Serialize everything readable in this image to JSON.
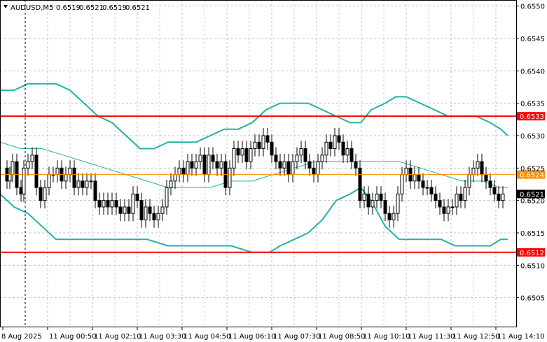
{
  "header": {
    "symbol": "AUDUSD,M5",
    "open": "0.6519",
    "high": "0.6521",
    "low": "0.6519",
    "close": "0.6521"
  },
  "colors": {
    "background": "#ffffff",
    "grid": "#c0c0c0",
    "candles": "#000000",
    "bands": "#20b2aa",
    "level_lines": "#ff0000",
    "mid_line": "#ff8c00",
    "current_price_box": "#000000",
    "level_label_box": "#ff0000"
  },
  "chart_data": {
    "type": "candlestick",
    "symbol": "AUDUSD",
    "timeframe": "M5",
    "ylim": [
      0.65,
      0.65505
    ],
    "yticks": [
      "0.6550",
      "0.6545",
      "0.6540",
      "0.6535",
      "0.6530",
      "0.6525",
      "0.6520",
      "0.6515",
      "0.6510",
      "0.6505"
    ],
    "xticks": [
      "8 Aug 2025",
      "11 Aug 00:50",
      "11 Aug 02:10",
      "11 Aug 03:30",
      "11 Aug 04:50",
      "11 Aug 06:10",
      "11 Aug 07:30",
      "11 Aug 08:50",
      "11 Aug 10:10",
      "11 Aug 11:30",
      "11 Aug 12:50",
      "11 Aug 14:10"
    ],
    "grid": true,
    "horizontal_levels": [
      {
        "label": "0.6533",
        "value": 0.6533,
        "color": "#ff0000"
      },
      {
        "label": "0.6524",
        "value": 0.6524,
        "color": "#ff8c00"
      },
      {
        "label": "0.6512",
        "value": 0.6512,
        "color": "#ff0000"
      }
    ],
    "current_price": {
      "label": "0.6521",
      "value": 0.6521
    },
    "close_path": [
      [
        0,
        0.6525
      ],
      [
        6,
        0.6523
      ],
      [
        10,
        0.6524
      ],
      [
        14,
        0.6526
      ],
      [
        20,
        0.6522
      ],
      [
        26,
        0.6521
      ],
      [
        30,
        0.6525
      ],
      [
        36,
        0.6526
      ],
      [
        42,
        0.6527
      ],
      [
        48,
        0.6522
      ],
      [
        54,
        0.652
      ],
      [
        60,
        0.6522
      ],
      [
        66,
        0.6524
      ],
      [
        72,
        0.6524
      ],
      [
        78,
        0.6525
      ],
      [
        84,
        0.6523
      ],
      [
        90,
        0.6524
      ],
      [
        96,
        0.6525
      ],
      [
        102,
        0.6522
      ],
      [
        108,
        0.6523
      ],
      [
        114,
        0.6522
      ],
      [
        120,
        0.6523
      ],
      [
        126,
        0.6523
      ],
      [
        132,
        0.652
      ],
      [
        138,
        0.6519
      ],
      [
        144,
        0.652
      ],
      [
        150,
        0.6519
      ],
      [
        156,
        0.652
      ],
      [
        162,
        0.6519
      ],
      [
        168,
        0.6518
      ],
      [
        174,
        0.6519
      ],
      [
        180,
        0.6518
      ],
      [
        186,
        0.6521
      ],
      [
        192,
        0.652
      ],
      [
        198,
        0.6517
      ],
      [
        204,
        0.6519
      ],
      [
        210,
        0.6518
      ],
      [
        216,
        0.6517
      ],
      [
        222,
        0.6518
      ],
      [
        228,
        0.6519
      ],
      [
        234,
        0.6522
      ],
      [
        240,
        0.6523
      ],
      [
        246,
        0.6524
      ],
      [
        252,
        0.6525
      ],
      [
        258,
        0.6524
      ],
      [
        264,
        0.6526
      ],
      [
        270,
        0.6525
      ],
      [
        276,
        0.6526
      ],
      [
        282,
        0.6527
      ],
      [
        288,
        0.6524
      ],
      [
        294,
        0.6527
      ],
      [
        300,
        0.6526
      ],
      [
        306,
        0.6525
      ],
      [
        312,
        0.6526
      ],
      [
        318,
        0.6522
      ],
      [
        324,
        0.6525
      ],
      [
        330,
        0.6528
      ],
      [
        336,
        0.6527
      ],
      [
        342,
        0.6528
      ],
      [
        348,
        0.6526
      ],
      [
        354,
        0.6528
      ],
      [
        360,
        0.6529
      ],
      [
        366,
        0.6528
      ],
      [
        372,
        0.653
      ],
      [
        378,
        0.6529
      ],
      [
        384,
        0.6527
      ],
      [
        390,
        0.6526
      ],
      [
        396,
        0.6525
      ],
      [
        402,
        0.6526
      ],
      [
        408,
        0.6524
      ],
      [
        414,
        0.6526
      ],
      [
        420,
        0.6527
      ],
      [
        426,
        0.6528
      ],
      [
        432,
        0.6526
      ],
      [
        438,
        0.6525
      ],
      [
        444,
        0.6524
      ],
      [
        450,
        0.6526
      ],
      [
        456,
        0.6527
      ],
      [
        462,
        0.6529
      ],
      [
        468,
        0.6528
      ],
      [
        474,
        0.653
      ],
      [
        480,
        0.6529
      ],
      [
        486,
        0.6527
      ],
      [
        492,
        0.6528
      ],
      [
        498,
        0.6526
      ],
      [
        504,
        0.6525
      ],
      [
        510,
        0.652
      ],
      [
        516,
        0.6521
      ],
      [
        522,
        0.6519
      ],
      [
        528,
        0.652
      ],
      [
        534,
        0.6521
      ],
      [
        540,
        0.652
      ],
      [
        546,
        0.6518
      ],
      [
        552,
        0.6517
      ],
      [
        558,
        0.6518
      ],
      [
        564,
        0.6521
      ],
      [
        570,
        0.6524
      ],
      [
        576,
        0.6525
      ],
      [
        582,
        0.6523
      ],
      [
        588,
        0.6524
      ],
      [
        594,
        0.6523
      ],
      [
        600,
        0.6522
      ],
      [
        606,
        0.6522
      ],
      [
        612,
        0.6521
      ],
      [
        618,
        0.652
      ],
      [
        624,
        0.6519
      ],
      [
        630,
        0.6518
      ],
      [
        636,
        0.6519
      ],
      [
        642,
        0.6519
      ],
      [
        648,
        0.6521
      ],
      [
        654,
        0.652
      ],
      [
        660,
        0.6522
      ],
      [
        666,
        0.6524
      ],
      [
        672,
        0.6525
      ],
      [
        678,
        0.6526
      ],
      [
        684,
        0.6524
      ],
      [
        690,
        0.6523
      ],
      [
        696,
        0.6522
      ],
      [
        702,
        0.6521
      ],
      [
        708,
        0.652
      ],
      [
        714,
        0.6521
      ]
    ],
    "upper_band": [
      [
        0,
        0.6537
      ],
      [
        20,
        0.6537
      ],
      [
        40,
        0.6538
      ],
      [
        60,
        0.6538
      ],
      [
        80,
        0.6538
      ],
      [
        100,
        0.6537
      ],
      [
        120,
        0.6535
      ],
      [
        140,
        0.6533
      ],
      [
        160,
        0.6532
      ],
      [
        180,
        0.653
      ],
      [
        200,
        0.6528
      ],
      [
        220,
        0.6528
      ],
      [
        240,
        0.6529
      ],
      [
        260,
        0.6529
      ],
      [
        280,
        0.6529
      ],
      [
        300,
        0.653
      ],
      [
        320,
        0.6531
      ],
      [
        340,
        0.6531
      ],
      [
        360,
        0.6532
      ],
      [
        380,
        0.6534
      ],
      [
        400,
        0.6535
      ],
      [
        420,
        0.6535
      ],
      [
        440,
        0.6535
      ],
      [
        460,
        0.6534
      ],
      [
        480,
        0.6533
      ],
      [
        500,
        0.6532
      ],
      [
        515,
        0.6532
      ],
      [
        530,
        0.6534
      ],
      [
        550,
        0.6535
      ],
      [
        565,
        0.6536
      ],
      [
        580,
        0.6536
      ],
      [
        600,
        0.6535
      ],
      [
        620,
        0.6534
      ],
      [
        640,
        0.6533
      ],
      [
        660,
        0.6533
      ],
      [
        680,
        0.6533
      ],
      [
        700,
        0.6532
      ],
      [
        715,
        0.6531
      ],
      [
        725,
        0.653
      ]
    ],
    "middle_band": [
      [
        0,
        0.6529
      ],
      [
        30,
        0.6528
      ],
      [
        60,
        0.6528
      ],
      [
        90,
        0.6527
      ],
      [
        120,
        0.6526
      ],
      [
        150,
        0.6525
      ],
      [
        180,
        0.6524
      ],
      [
        210,
        0.6523
      ],
      [
        240,
        0.6522
      ],
      [
        270,
        0.6522
      ],
      [
        300,
        0.6522
      ],
      [
        330,
        0.6523
      ],
      [
        360,
        0.6523
      ],
      [
        390,
        0.6524
      ],
      [
        420,
        0.6525
      ],
      [
        450,
        0.6526
      ],
      [
        480,
        0.6526
      ],
      [
        510,
        0.6526
      ],
      [
        540,
        0.6526
      ],
      [
        570,
        0.6526
      ],
      [
        600,
        0.6525
      ],
      [
        630,
        0.6524
      ],
      [
        660,
        0.6523
      ],
      [
        690,
        0.6523
      ],
      [
        712,
        0.6522
      ],
      [
        725,
        0.6522
      ]
    ],
    "lower_band": [
      [
        0,
        0.6521
      ],
      [
        20,
        0.6519
      ],
      [
        40,
        0.6518
      ],
      [
        60,
        0.6516
      ],
      [
        80,
        0.6514
      ],
      [
        100,
        0.6514
      ],
      [
        120,
        0.6514
      ],
      [
        150,
        0.6514
      ],
      [
        180,
        0.6514
      ],
      [
        210,
        0.6514
      ],
      [
        240,
        0.6513
      ],
      [
        270,
        0.6513
      ],
      [
        300,
        0.6513
      ],
      [
        330,
        0.6513
      ],
      [
        360,
        0.6512
      ],
      [
        385,
        0.6512
      ],
      [
        400,
        0.6513
      ],
      [
        420,
        0.6514
      ],
      [
        440,
        0.6515
      ],
      [
        460,
        0.6517
      ],
      [
        480,
        0.652
      ],
      [
        500,
        0.6521
      ],
      [
        515,
        0.6522
      ],
      [
        530,
        0.652
      ],
      [
        550,
        0.6516
      ],
      [
        570,
        0.6514
      ],
      [
        600,
        0.6514
      ],
      [
        630,
        0.6514
      ],
      [
        650,
        0.6513
      ],
      [
        680,
        0.6513
      ],
      [
        700,
        0.6513
      ],
      [
        715,
        0.6514
      ],
      [
        725,
        0.6514
      ]
    ]
  }
}
